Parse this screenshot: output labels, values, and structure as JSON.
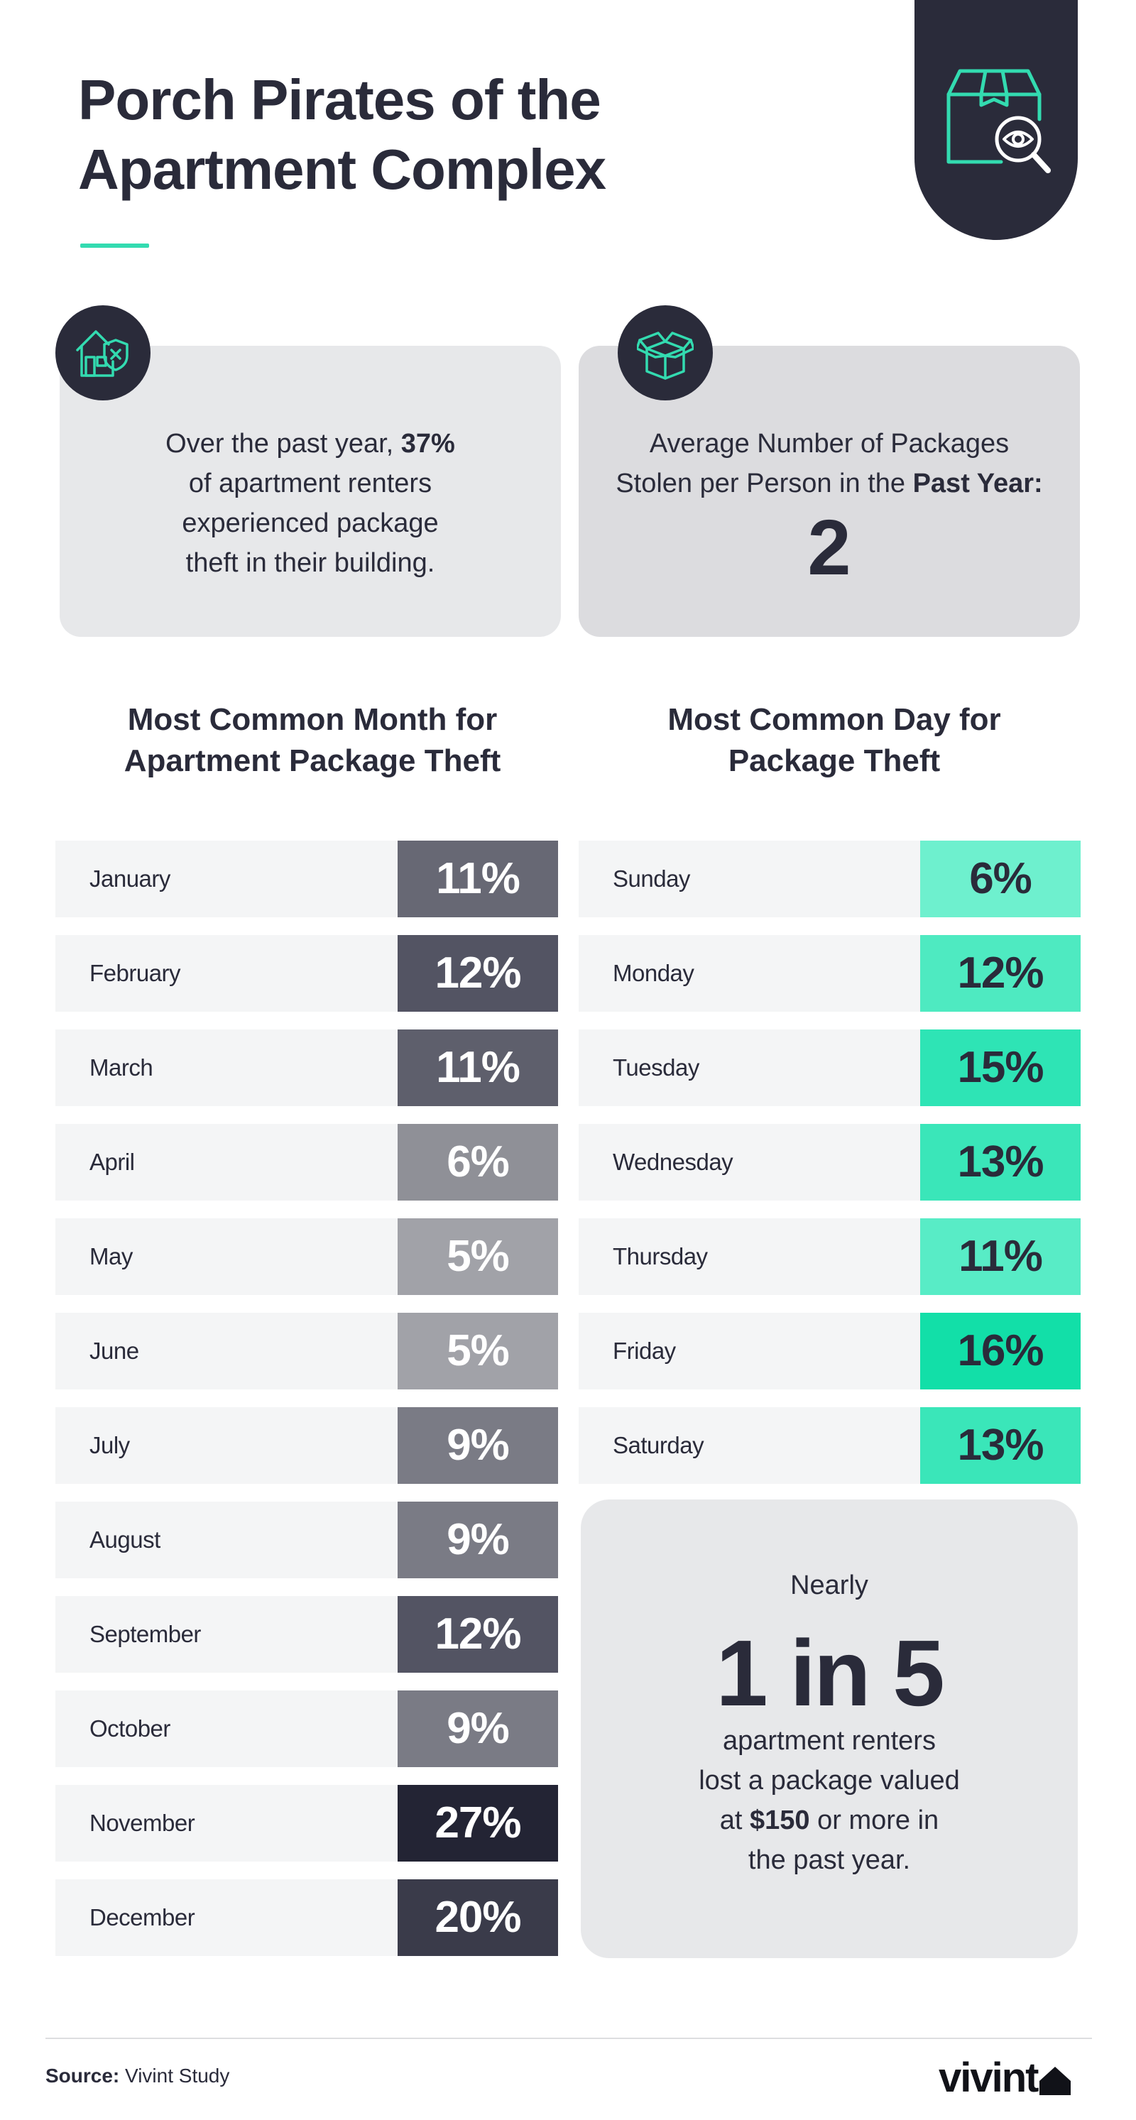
{
  "header": {
    "title_line1": "Porch Pirates of the",
    "title_line2": "Apartment Complex"
  },
  "icons": {
    "hero": "package-search-icon",
    "card_left": "house-shield-icon",
    "card_right": "open-box-icon"
  },
  "stat_left": {
    "line1_pre": "Over the past year, ",
    "line1_bold": "37%",
    "line2": "of apartment renters",
    "line3": "experienced package",
    "line4": "theft in their building."
  },
  "stat_right": {
    "line1": "Average Number of Packages",
    "line2_pre": "Stolen per Person in the ",
    "line2_bold": "Past Year:",
    "value": "2"
  },
  "months": {
    "heading_line1": "Most Common Month for",
    "heading_line2": "Apartment Package Theft",
    "rows": [
      {
        "label": "January",
        "value": "11%",
        "color": "#676874"
      },
      {
        "label": "February",
        "value": "12%",
        "color": "#535463"
      },
      {
        "label": "March",
        "value": "11%",
        "color": "#5e5f6c"
      },
      {
        "label": "April",
        "value": "6%",
        "color": "#8f9097"
      },
      {
        "label": "May",
        "value": "5%",
        "color": "#a1a2a8"
      },
      {
        "label": "June",
        "value": "5%",
        "color": "#a1a2a8"
      },
      {
        "label": "July",
        "value": "9%",
        "color": "#7a7b85"
      },
      {
        "label": "August",
        "value": "9%",
        "color": "#7a7b85"
      },
      {
        "label": "September",
        "value": "12%",
        "color": "#535463"
      },
      {
        "label": "October",
        "value": "9%",
        "color": "#7a7b85"
      },
      {
        "label": "November",
        "value": "27%",
        "color": "#232434"
      },
      {
        "label": "December",
        "value": "20%",
        "color": "#3a3b4a"
      }
    ]
  },
  "days": {
    "heading_line1": "Most Common Day for",
    "heading_line2": "Package Theft",
    "rows": [
      {
        "label": "Sunday",
        "value": "6%",
        "color": "#6ef0ce"
      },
      {
        "label": "Monday",
        "value": "12%",
        "color": "#4eeac1"
      },
      {
        "label": "Tuesday",
        "value": "15%",
        "color": "#2ee4b5"
      },
      {
        "label": "Wednesday",
        "value": "13%",
        "color": "#3ae6b9"
      },
      {
        "label": "Thursday",
        "value": "11%",
        "color": "#58ecc6"
      },
      {
        "label": "Friday",
        "value": "16%",
        "color": "#12dfa8"
      },
      {
        "label": "Saturday",
        "value": "13%",
        "color": "#3ae6b9"
      }
    ]
  },
  "fact": {
    "nearly": "Nearly",
    "big": "1 in 5",
    "line1": "apartment renters",
    "line2": "lost a package valued",
    "line3_pre": "at ",
    "line3_bold": "$150",
    "line3_post": " or more in",
    "line4": "the past year."
  },
  "footer": {
    "source_label": "Source:",
    "source_text": " Vivint Study",
    "logo": "vivint"
  },
  "colors": {
    "navy": "#2a2b3a",
    "accent": "#33dbb0"
  }
}
